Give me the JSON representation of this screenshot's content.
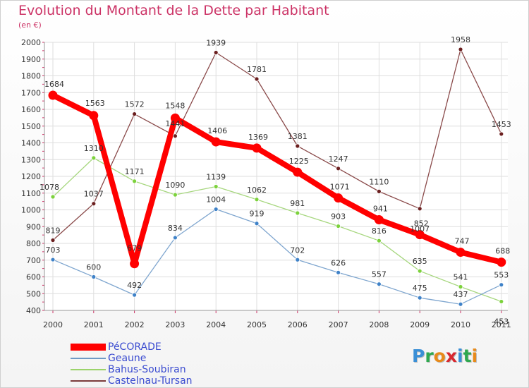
{
  "header": {
    "title": "Evolution du Montant de la Dette par Habitant",
    "subtitle": "(en €)"
  },
  "logo": {
    "text": "Proxiti",
    "letters": [
      "P",
      "r",
      "o",
      "x",
      "i",
      "t",
      "i"
    ],
    "colors": [
      "#3a8fd6",
      "#2fa84f",
      "#e88a1a",
      "#d8282f",
      "#3a8fd6",
      "#2fa84f",
      "#e88a1a"
    ]
  },
  "chart_data": {
    "type": "line",
    "title": "Evolution du Montant de la Dette par Habitant",
    "subtitle": "(en €)",
    "xlabel": "",
    "ylabel": "",
    "categories": [
      "2000",
      "2001",
      "2002",
      "2003",
      "2004",
      "2005",
      "2006",
      "2007",
      "2008",
      "2009",
      "2010",
      "2011"
    ],
    "ylim": [
      400,
      2000
    ],
    "yticks": [
      400,
      500,
      600,
      700,
      800,
      900,
      1000,
      1100,
      1200,
      1300,
      1400,
      1500,
      1600,
      1700,
      1800,
      1900,
      2000
    ],
    "grid": true,
    "legend_position": "bottom-left",
    "series": [
      {
        "name": "PéCORADE",
        "color": "#ff0000",
        "values": [
          1684,
          1563,
          679,
          1548,
          1406,
          1369,
          1225,
          1071,
          941,
          852,
          747,
          688
        ]
      },
      {
        "name": "Geaune",
        "color": "#6f9ac6",
        "values": [
          703,
          600,
          492,
          834,
          1004,
          919,
          702,
          626,
          557,
          475,
          437,
          553
        ]
      },
      {
        "name": "Bahus-Soubiran",
        "color": "#9bd36a",
        "values": [
          1078,
          1310,
          1171,
          1090,
          1139,
          1062,
          981,
          903,
          816,
          635,
          541,
          453
        ]
      },
      {
        "name": "Castelnau-Tursan",
        "color": "#7a3b3b",
        "values": [
          819,
          1037,
          1572,
          1441,
          1939,
          1781,
          1381,
          1247,
          1110,
          1007,
          1958,
          1453
        ]
      }
    ]
  }
}
